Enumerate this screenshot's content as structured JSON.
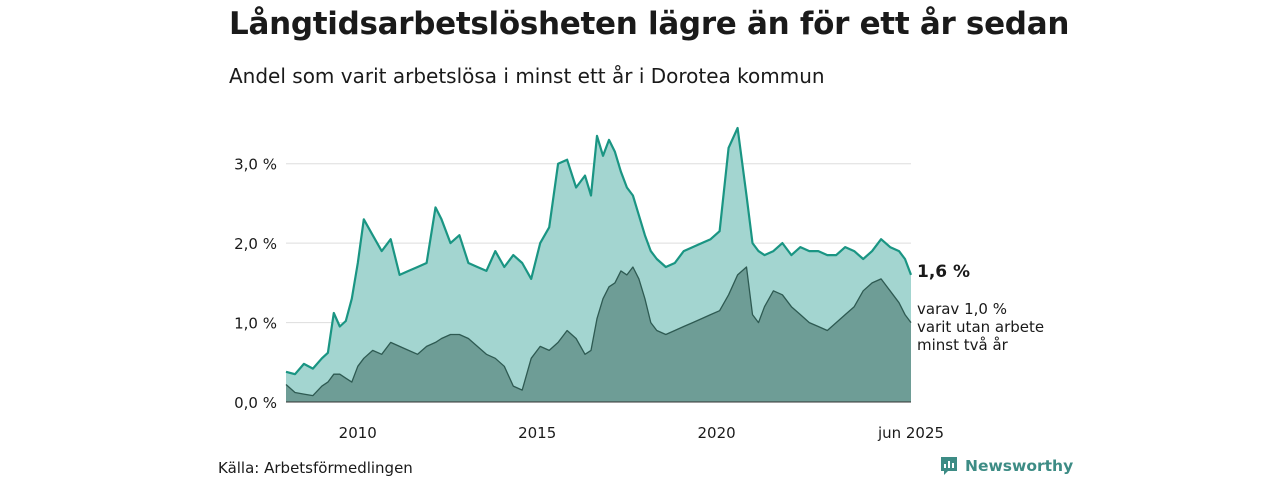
{
  "title": "Långtidsarbetslösheten lägre än för ett år sedan",
  "subtitle": "Andel som varit arbetslösa i minst ett år i Dorotea kommun",
  "source": "Källa: Arbetsförmedlingen",
  "brand": {
    "name": "Newsworthy",
    "icon": "newsworthy-logo-icon"
  },
  "colors": {
    "total_line": "#1a9583",
    "total_fill": "#a3d5d0",
    "sub_line": "#2e5a52",
    "sub_fill": "#6e9d96",
    "grid": "#dddddd"
  },
  "annotation": {
    "value": "1,6 %",
    "sub_lines": [
      "varav 1,0 %",
      "varit utan arbete",
      "minst två år"
    ]
  },
  "chart_data": {
    "type": "area",
    "title": "Långtidsarbetslösheten lägre än för ett år sedan",
    "subtitle": "Andel som varit arbetslösa i minst ett år i Dorotea kommun",
    "xlabel": "",
    "ylabel": "",
    "ylim": [
      0,
      3.5
    ],
    "y_ticks": [
      0,
      1,
      2,
      3
    ],
    "y_tick_labels": [
      "0,0 %",
      "1,0 %",
      "2,0 %",
      "3,0 %"
    ],
    "x_ticks": [
      "2010-01",
      "2015-01",
      "2020-01",
      "2025-06"
    ],
    "x_tick_labels": [
      "2010",
      "2015",
      "2020",
      "jun 2025"
    ],
    "grid": true,
    "series": [
      {
        "name": "",
        "x": [
          "2008-01",
          "2008-04",
          "2008-07",
          "2008-10",
          "2009-01",
          "2009-03",
          "2009-05",
          "2009-07",
          "2009-09",
          "2009-11",
          "2010-01",
          "2010-03",
          "2010-06",
          "2010-09",
          "2010-12",
          "2011-03",
          "2011-06",
          "2011-09",
          "2011-12",
          "2012-03",
          "2012-05",
          "2012-08",
          "2012-11",
          "2013-02",
          "2013-05",
          "2013-08",
          "2013-11",
          "2014-02",
          "2014-05",
          "2014-08",
          "2014-11",
          "2015-02",
          "2015-05",
          "2015-08",
          "2015-11",
          "2016-02",
          "2016-05",
          "2016-07",
          "2016-09",
          "2016-11",
          "2017-01",
          "2017-03",
          "2017-05",
          "2017-07",
          "2017-09",
          "2017-11",
          "2018-01",
          "2018-03",
          "2018-05",
          "2018-08",
          "2018-11",
          "2019-02",
          "2019-05",
          "2019-08",
          "2019-11",
          "2020-02",
          "2020-05",
          "2020-08",
          "2020-11",
          "2021-01",
          "2021-03",
          "2021-05",
          "2021-08",
          "2021-11",
          "2022-02",
          "2022-05",
          "2022-08",
          "2022-11",
          "2023-02",
          "2023-05",
          "2023-08",
          "2023-11",
          "2024-02",
          "2024-05",
          "2024-08",
          "2024-11",
          "2025-02",
          "2025-04",
          "2025-06"
        ],
        "values": [
          0.38,
          0.35,
          0.48,
          0.42,
          0.55,
          0.62,
          1.12,
          0.95,
          1.02,
          1.3,
          1.75,
          2.3,
          2.1,
          1.9,
          2.05,
          1.6,
          1.65,
          1.7,
          1.75,
          2.45,
          2.3,
          2.0,
          2.1,
          1.75,
          1.7,
          1.65,
          1.9,
          1.7,
          1.85,
          1.75,
          1.55,
          2.0,
          2.2,
          3.0,
          3.05,
          2.7,
          2.85,
          2.6,
          3.35,
          3.1,
          3.3,
          3.15,
          2.9,
          2.7,
          2.6,
          2.35,
          2.1,
          1.9,
          1.8,
          1.7,
          1.75,
          1.9,
          1.95,
          2.0,
          2.05,
          2.15,
          3.2,
          3.45,
          2.6,
          2.0,
          1.9,
          1.85,
          1.9,
          2.0,
          1.85,
          1.95,
          1.9,
          1.9,
          1.85,
          1.85,
          1.95,
          1.9,
          1.8,
          1.9,
          2.05,
          1.95,
          1.9,
          1.8,
          1.6
        ]
      },
      {
        "name": "",
        "x": [
          "2008-01",
          "2008-04",
          "2008-07",
          "2008-10",
          "2009-01",
          "2009-03",
          "2009-05",
          "2009-07",
          "2009-09",
          "2009-11",
          "2010-01",
          "2010-03",
          "2010-06",
          "2010-09",
          "2010-12",
          "2011-03",
          "2011-06",
          "2011-09",
          "2011-12",
          "2012-03",
          "2012-05",
          "2012-08",
          "2012-11",
          "2013-02",
          "2013-05",
          "2013-08",
          "2013-11",
          "2014-02",
          "2014-05",
          "2014-08",
          "2014-11",
          "2015-02",
          "2015-05",
          "2015-08",
          "2015-11",
          "2016-02",
          "2016-05",
          "2016-07",
          "2016-09",
          "2016-11",
          "2017-01",
          "2017-03",
          "2017-05",
          "2017-07",
          "2017-09",
          "2017-11",
          "2018-01",
          "2018-03",
          "2018-05",
          "2018-08",
          "2018-11",
          "2019-02",
          "2019-05",
          "2019-08",
          "2019-11",
          "2020-02",
          "2020-05",
          "2020-08",
          "2020-11",
          "2021-01",
          "2021-03",
          "2021-05",
          "2021-08",
          "2021-11",
          "2022-02",
          "2022-05",
          "2022-08",
          "2022-11",
          "2023-02",
          "2023-05",
          "2023-08",
          "2023-11",
          "2024-02",
          "2024-05",
          "2024-08",
          "2024-11",
          "2025-02",
          "2025-04",
          "2025-06"
        ],
        "values": [
          0.22,
          0.12,
          0.1,
          0.08,
          0.2,
          0.25,
          0.35,
          0.35,
          0.3,
          0.25,
          0.45,
          0.55,
          0.65,
          0.6,
          0.75,
          0.7,
          0.65,
          0.6,
          0.7,
          0.75,
          0.8,
          0.85,
          0.85,
          0.8,
          0.7,
          0.6,
          0.55,
          0.45,
          0.2,
          0.15,
          0.55,
          0.7,
          0.65,
          0.75,
          0.9,
          0.8,
          0.6,
          0.65,
          1.05,
          1.3,
          1.45,
          1.5,
          1.65,
          1.6,
          1.7,
          1.55,
          1.3,
          1.0,
          0.9,
          0.85,
          0.9,
          0.95,
          1.0,
          1.05,
          1.1,
          1.15,
          1.35,
          1.6,
          1.7,
          1.1,
          1.0,
          1.2,
          1.4,
          1.35,
          1.2,
          1.1,
          1.0,
          0.95,
          0.9,
          1.0,
          1.1,
          1.2,
          1.4,
          1.5,
          1.55,
          1.4,
          1.25,
          1.1,
          1.0
        ]
      }
    ],
    "end_labels": [
      "1,6 %",
      "varav 1,0 %",
      "varit utan arbete",
      "minst två år"
    ]
  }
}
